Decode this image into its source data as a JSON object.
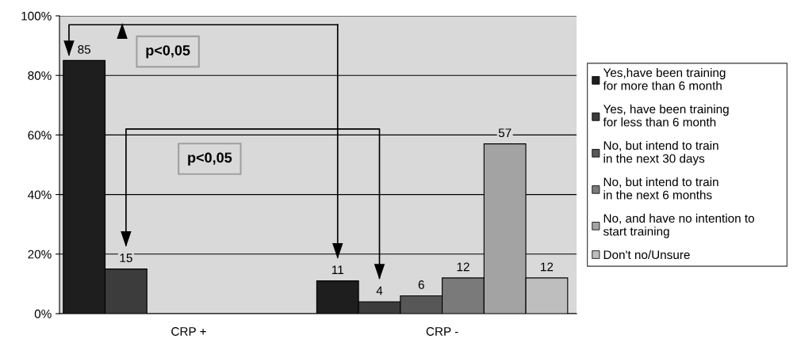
{
  "chart_data": {
    "type": "bar",
    "categories": [
      "CRP +",
      "CRP -"
    ],
    "series": [
      {
        "name": "Yes,have been training\nfor more than 6 month",
        "color": "#1e1e1e",
        "values": [
          85,
          11
        ]
      },
      {
        "name": "Yes, have been training\nfor less than 6 month",
        "color": "#3c3c3c",
        "values": [
          15,
          4
        ]
      },
      {
        "name": "No, but intend to train\nin the next 30 days",
        "color": "#575757",
        "values": [
          null,
          6
        ]
      },
      {
        "name": "No, but intend to train\nin the next 6 months",
        "color": "#7a7a7a",
        "values": [
          null,
          12
        ]
      },
      {
        "name": "No, and have no intention to\nstart training",
        "color": "#a3a3a3",
        "values": [
          null,
          57
        ]
      },
      {
        "name": "Don't no/Unsure",
        "color": "#bebebe",
        "values": [
          null,
          12
        ]
      }
    ],
    "ylim": [
      0,
      100
    ],
    "yticks": [
      {
        "value": 0,
        "label": "0%"
      },
      {
        "value": 20,
        "label": "20%"
      },
      {
        "value": 40,
        "label": "40%"
      },
      {
        "value": 60,
        "label": "60%"
      },
      {
        "value": 80,
        "label": "80%"
      },
      {
        "value": 100,
        "label": "100%"
      }
    ],
    "grid": "y",
    "legend": "right",
    "data_labels": true,
    "annotations": [
      "p<0,05",
      "p<0,05"
    ]
  }
}
